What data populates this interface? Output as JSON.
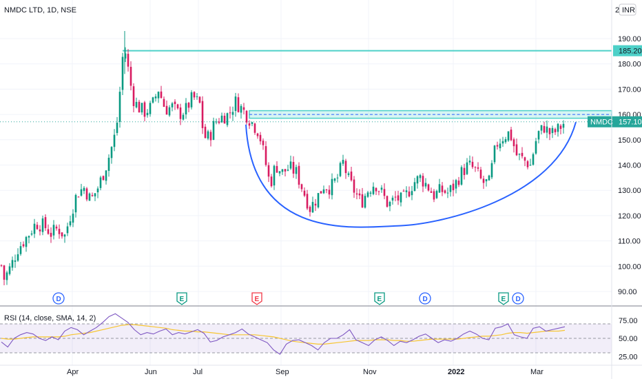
{
  "header": {
    "title": "NMDC LTD, 1D, NSE",
    "currency": "INR"
  },
  "chart_data": {
    "type": "candlestick",
    "price_axis": {
      "ticks": [
        90,
        100,
        110,
        120,
        130,
        140,
        150,
        160,
        170,
        180,
        190
      ],
      "tick_labels": [
        "90.00",
        "100.00",
        "110.00",
        "120.00",
        "130.00",
        "140.00",
        "150.00",
        "160.00",
        "170.00",
        "180.00",
        "190.00"
      ],
      "range": [
        85,
        200
      ],
      "top_partial_label": "2"
    },
    "time_axis": {
      "labels": [
        "Apr",
        "Jun",
        "Jul",
        "Sep",
        "Nov",
        "2022",
        "Mar"
      ]
    },
    "last_price": {
      "symbol": "NMDC",
      "value": 157.1,
      "label": "157.10",
      "color": "#26a69a"
    },
    "resistance": {
      "value": 185.2,
      "label": "185.20",
      "color": "#4dd0c8"
    },
    "neckline_zone": {
      "low": 158.5,
      "high": 161.5,
      "mid": 160.0,
      "color": "#4dd0c8"
    },
    "cup_pattern": {
      "start_price": 156,
      "bottom_price": 116,
      "end_price": 157,
      "color": "#2962ff"
    },
    "events": [
      {
        "letter": "D",
        "kind": "dividend",
        "color": "#2962ff"
      },
      {
        "letter": "E",
        "kind": "earnings",
        "color": "#089981"
      },
      {
        "letter": "E",
        "kind": "earnings-miss",
        "color": "#f23645"
      },
      {
        "letter": "E",
        "kind": "earnings",
        "color": "#089981"
      },
      {
        "letter": "D",
        "kind": "dividend",
        "color": "#2962ff"
      },
      {
        "letter": "E",
        "kind": "earnings",
        "color": "#089981"
      },
      {
        "letter": "D",
        "kind": "dividend",
        "color": "#2962ff"
      }
    ],
    "price_path": [
      [
        0,
        103
      ],
      [
        6,
        95
      ],
      [
        16,
        100
      ],
      [
        26,
        107
      ],
      [
        40,
        112
      ],
      [
        52,
        117
      ],
      [
        64,
        116
      ],
      [
        74,
        113
      ],
      [
        84,
        115
      ],
      [
        94,
        112
      ],
      [
        102,
        120
      ],
      [
        112,
        129
      ],
      [
        122,
        131
      ],
      [
        132,
        126
      ],
      [
        142,
        131
      ],
      [
        152,
        138
      ],
      [
        160,
        145
      ],
      [
        166,
        151
      ],
      [
        172,
        160
      ],
      [
        176,
        178
      ],
      [
        180,
        187
      ],
      [
        184,
        182
      ],
      [
        188,
        174
      ],
      [
        194,
        166
      ],
      [
        200,
        163
      ],
      [
        210,
        161
      ],
      [
        220,
        163
      ],
      [
        230,
        170
      ],
      [
        240,
        162
      ],
      [
        250,
        163
      ],
      [
        260,
        160
      ],
      [
        270,
        162
      ],
      [
        280,
        167
      ],
      [
        290,
        164
      ],
      [
        296,
        151
      ],
      [
        304,
        151
      ],
      [
        312,
        157
      ],
      [
        322,
        159
      ],
      [
        332,
        160
      ],
      [
        342,
        165
      ],
      [
        352,
        162
      ],
      [
        360,
        159
      ],
      [
        368,
        156
      ],
      [
        376,
        153
      ],
      [
        384,
        143
      ],
      [
        392,
        132
      ],
      [
        400,
        140
      ],
      [
        410,
        137
      ],
      [
        420,
        139
      ],
      [
        430,
        137
      ],
      [
        440,
        130
      ],
      [
        450,
        123
      ],
      [
        460,
        127
      ],
      [
        470,
        132
      ],
      [
        480,
        131
      ],
      [
        490,
        135
      ],
      [
        498,
        141
      ],
      [
        506,
        134
      ],
      [
        514,
        130
      ],
      [
        524,
        125
      ],
      [
        534,
        130
      ],
      [
        544,
        133
      ],
      [
        554,
        129
      ],
      [
        564,
        124
      ],
      [
        574,
        127
      ],
      [
        584,
        126
      ],
      [
        592,
        129
      ],
      [
        600,
        133
      ],
      [
        610,
        135
      ],
      [
        620,
        132
      ],
      [
        630,
        128
      ],
      [
        640,
        130
      ],
      [
        650,
        129
      ],
      [
        660,
        132
      ],
      [
        670,
        137
      ],
      [
        680,
        140
      ],
      [
        690,
        138
      ],
      [
        700,
        133
      ],
      [
        710,
        133
      ],
      [
        720,
        148
      ],
      [
        730,
        151
      ],
      [
        740,
        153
      ],
      [
        750,
        144
      ],
      [
        760,
        142
      ],
      [
        770,
        140
      ],
      [
        780,
        152
      ],
      [
        790,
        155
      ],
      [
        800,
        152
      ],
      [
        810,
        154
      ],
      [
        820,
        157
      ]
    ],
    "rsi": {
      "title": "RSI (14, close, SMA, 14, 2)",
      "ticks": [
        25,
        50,
        75
      ],
      "tick_labels": [
        "25.00",
        "50.00",
        "75.00"
      ],
      "upper_band": 70,
      "lower_band": 30,
      "values": [
        45,
        38,
        50,
        55,
        58,
        56,
        50,
        47,
        52,
        48,
        60,
        65,
        62,
        55,
        60,
        65,
        72,
        80,
        84,
        78,
        72,
        62,
        55,
        58,
        56,
        60,
        63,
        55,
        58,
        56,
        59,
        62,
        57,
        45,
        47,
        52,
        55,
        58,
        63,
        56,
        52,
        48,
        44,
        34,
        28,
        42,
        47,
        48,
        44,
        40,
        34,
        44,
        50,
        50,
        55,
        62,
        48,
        44,
        40,
        48,
        52,
        47,
        40,
        46,
        44,
        48,
        53,
        56,
        50,
        44,
        48,
        46,
        50,
        56,
        60,
        56,
        50,
        48,
        64,
        66,
        70,
        55,
        52,
        50,
        64,
        66,
        60,
        62,
        64,
        66
      ],
      "sma": [
        50,
        49,
        49,
        50,
        51,
        52,
        52,
        52,
        52,
        52,
        53,
        55,
        56,
        57,
        58,
        60,
        62,
        64,
        66,
        68,
        69,
        69,
        68,
        67,
        66,
        65,
        64,
        62,
        61,
        60,
        60,
        59,
        59,
        58,
        57,
        56,
        55,
        55,
        55,
        55,
        55,
        54,
        53,
        52,
        50,
        48,
        46,
        45,
        44,
        43,
        42,
        42,
        43,
        44,
        45,
        46,
        47,
        47,
        47,
        48,
        48,
        48,
        47,
        47,
        46,
        46,
        47,
        48,
        49,
        49,
        49,
        49,
        49,
        50,
        51,
        52,
        53,
        53,
        54,
        55,
        57,
        58,
        58,
        57,
        58,
        59,
        60,
        60,
        60,
        61
      ],
      "color": "#7e57c2",
      "sma_color": "#f7c530"
    }
  }
}
